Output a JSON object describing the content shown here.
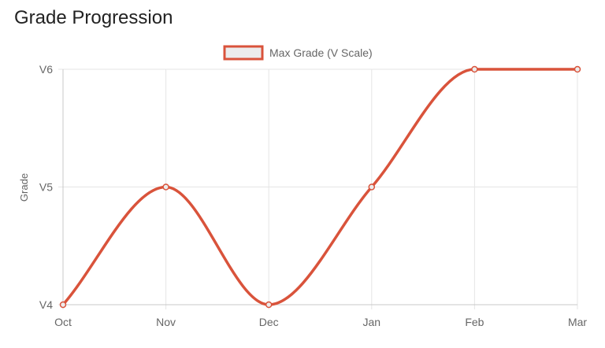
{
  "page": {
    "title": "Grade Progression"
  },
  "colors": {
    "series_line": "#d9533b",
    "legend_fill": "#ececec",
    "grid": "#e5e5e5",
    "axis": "#c8c8c8",
    "tick_text": "#666666"
  },
  "chart_data": {
    "type": "line",
    "title": "",
    "xlabel": "",
    "ylabel": "Grade",
    "categories": [
      "Oct",
      "Nov",
      "Dec",
      "Jan",
      "Feb",
      "Mar"
    ],
    "y_ticks": [
      "V4",
      "V5",
      "V6"
    ],
    "ylim": [
      4,
      6
    ],
    "grid": true,
    "legend_position": "top-center",
    "smooth": true,
    "series": [
      {
        "name": "Max Grade (V Scale)",
        "values": [
          4,
          5,
          4,
          5,
          6,
          6
        ]
      }
    ]
  }
}
